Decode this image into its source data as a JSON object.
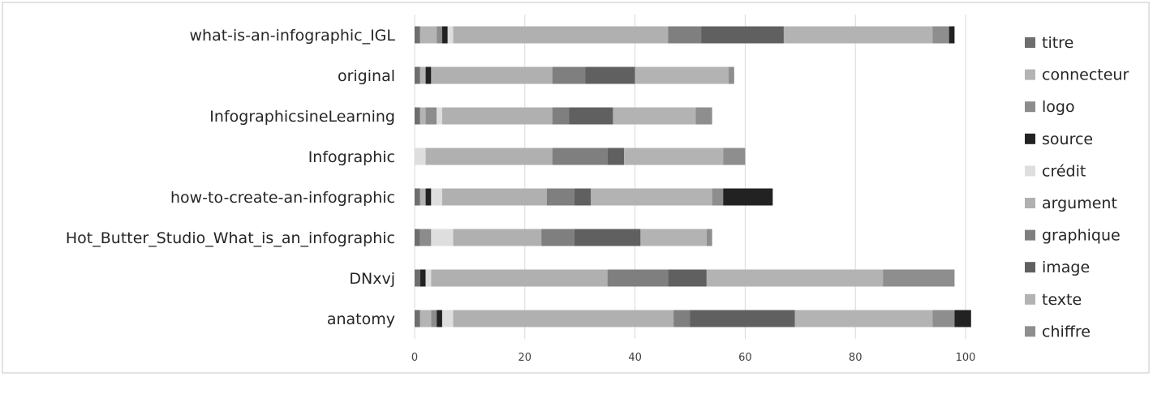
{
  "chart_data": {
    "type": "bar",
    "orientation": "horizontal",
    "stacked": true,
    "categories": [
      "what-is-an-infographic_IGL",
      "original",
      "InfographicsineLearning",
      "Infographic",
      "how-to-create-an-infographic",
      "Hot_Butter_Studio_What_is_an_infographic",
      "DNxvj",
      "anatomy"
    ],
    "series": [
      {
        "name": "titre",
        "color": "#6e6e6e",
        "values": [
          1,
          1,
          1,
          0,
          1,
          1,
          1,
          1
        ]
      },
      {
        "name": "connecteur",
        "color": "#b4b4b4",
        "values": [
          3,
          1,
          1,
          0,
          1,
          0,
          0,
          2
        ]
      },
      {
        "name": "logo",
        "color": "#8c8c8c",
        "values": [
          1,
          0,
          2,
          0,
          0,
          2,
          0,
          1
        ]
      },
      {
        "name": "source",
        "color": "#222222",
        "values": [
          1,
          1,
          0,
          0,
          1,
          0,
          1,
          1
        ]
      },
      {
        "name": "crédit",
        "color": "#dedede",
        "values": [
          1,
          0,
          1,
          2,
          2,
          4,
          1,
          2
        ]
      },
      {
        "name": "argument",
        "color": "#b0b0b0",
        "values": [
          39,
          22,
          20,
          23,
          19,
          16,
          32,
          40
        ]
      },
      {
        "name": "graphique",
        "color": "#7f7f7f",
        "values": [
          6,
          6,
          3,
          10,
          5,
          6,
          11,
          3
        ]
      },
      {
        "name": "image",
        "color": "#606060",
        "values": [
          15,
          9,
          8,
          3,
          3,
          12,
          7,
          19
        ]
      },
      {
        "name": "texte",
        "color": "#b3b3b3",
        "values": [
          27,
          17,
          15,
          18,
          22,
          12,
          32,
          25
        ]
      },
      {
        "name": "chiffre",
        "color": "#8e8e8e",
        "values": [
          3,
          1,
          3,
          4,
          2,
          1,
          13,
          4
        ]
      },
      {
        "name": "__extra__",
        "color": "#222222",
        "values": [
          1,
          0,
          0,
          0,
          9,
          0,
          0,
          3
        ]
      }
    ],
    "legend_series": [
      "titre",
      "connecteur",
      "logo",
      "source",
      "crédit",
      "argument",
      "graphique",
      "image",
      "texte",
      "chiffre"
    ],
    "xlim": [
      0,
      100
    ],
    "xticks": [
      0,
      20,
      40,
      60,
      80,
      100
    ],
    "grid": true,
    "legend_position": "right",
    "title": "",
    "xlabel": "",
    "ylabel": ""
  }
}
